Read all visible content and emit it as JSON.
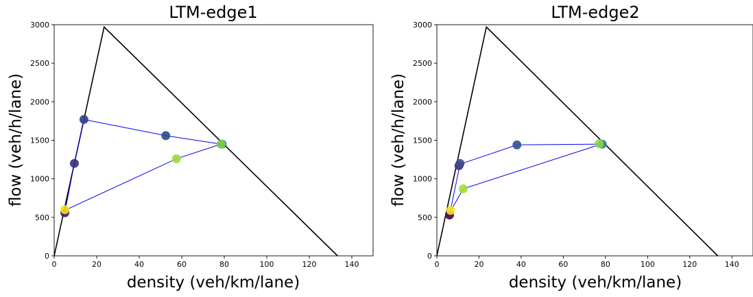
{
  "chart_data": [
    {
      "type": "scatter",
      "title": "LTM-edge1",
      "xlabel": "density (veh/km/lane)",
      "ylabel": "flow (veh/h/lane)",
      "xlim": [
        0,
        150
      ],
      "ylim": [
        0,
        3000
      ],
      "xticks": [
        0,
        20,
        40,
        60,
        80,
        100,
        120,
        140
      ],
      "yticks": [
        0,
        500,
        1000,
        1500,
        2000,
        2500,
        3000
      ],
      "fundamental_diagram": {
        "x": [
          0,
          23.5,
          133.3
        ],
        "y": [
          0,
          2970,
          0
        ],
        "color": "#000000"
      },
      "trajectory": {
        "color": "#0000ee",
        "x": [
          5,
          9.5,
          14,
          52.5,
          78.5,
          57.5,
          5
        ],
        "y": [
          560,
          1200,
          1770,
          1560,
          1450,
          1260,
          590
        ]
      },
      "points": [
        {
          "x": 5,
          "y": 560,
          "color": "#3f1a5c"
        },
        {
          "x": 9.5,
          "y": 1200,
          "color": "#35307c"
        },
        {
          "x": 14,
          "y": 1770,
          "color": "#2e3f8a"
        },
        {
          "x": 52.5,
          "y": 1560,
          "color": "#2f4a8b"
        },
        {
          "x": 79,
          "y": 1450,
          "color": "#3a6c9a"
        },
        {
          "x": 78.5,
          "y": 1450,
          "color": "#7ed340"
        },
        {
          "x": 57.5,
          "y": 1260,
          "color": "#9dd93b"
        },
        {
          "x": 5,
          "y": 600,
          "color": "#f2e11a"
        }
      ]
    },
    {
      "type": "scatter",
      "title": "LTM-edge2",
      "xlabel": "density (veh/km/lane)",
      "ylabel": "flow (veh/h/lane)",
      "xlim": [
        0,
        150
      ],
      "ylim": [
        0,
        3000
      ],
      "xticks": [
        0,
        20,
        40,
        60,
        80,
        100,
        120,
        140
      ],
      "yticks": [
        0,
        500,
        1000,
        1500,
        2000,
        2500,
        3000
      ],
      "fundamental_diagram": {
        "x": [
          0,
          23.5,
          133.3
        ],
        "y": [
          0,
          2970,
          0
        ],
        "color": "#000000"
      },
      "trajectory": {
        "color": "#0000ee",
        "x": [
          6,
          11,
          38,
          78,
          12.5,
          6.5
        ],
        "y": [
          530,
          1190,
          1440,
          1450,
          870,
          580
        ]
      },
      "points": [
        {
          "x": 6,
          "y": 530,
          "color": "#440154"
        },
        {
          "x": 10.5,
          "y": 1170,
          "color": "#472b7a"
        },
        {
          "x": 11,
          "y": 1200,
          "color": "#3b4c8c"
        },
        {
          "x": 38,
          "y": 1440,
          "color": "#31528c"
        },
        {
          "x": 78.5,
          "y": 1450,
          "color": "#3e7c91"
        },
        {
          "x": 77,
          "y": 1455,
          "color": "#8bd646"
        },
        {
          "x": 12.5,
          "y": 870,
          "color": "#a9db33"
        },
        {
          "x": 6.5,
          "y": 590,
          "color": "#f4e21c"
        }
      ]
    }
  ]
}
